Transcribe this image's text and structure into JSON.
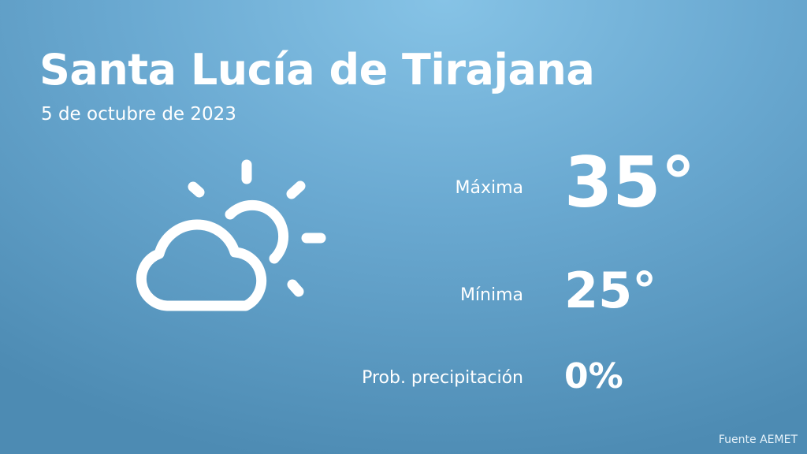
{
  "location": "Santa Lucía de Tirajana",
  "date": "5 de octubre de 2023",
  "weather_icon": "partly-cloudy-icon",
  "max": {
    "label": "Máxima",
    "value": "35°"
  },
  "min": {
    "label": "Mínima",
    "value": "25°"
  },
  "precip": {
    "label": "Prob. precipitación",
    "value": "0%"
  },
  "source": "Fuente AEMET"
}
